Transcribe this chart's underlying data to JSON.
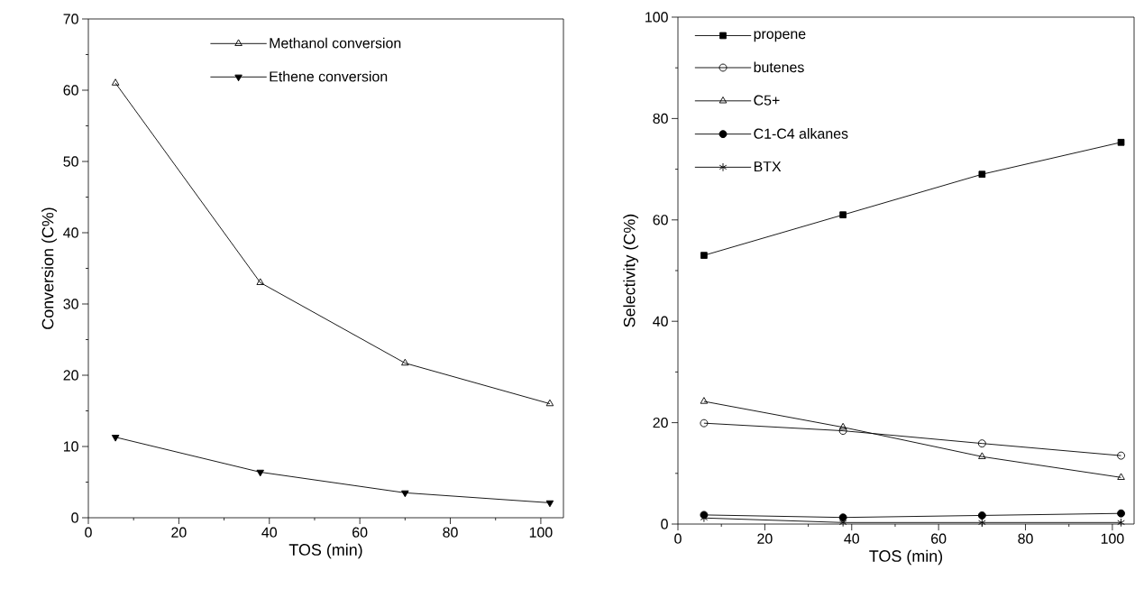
{
  "chart_data": [
    {
      "type": "line",
      "xlabel": "TOS (min)",
      "ylabel": "Conversion (C%)",
      "x": [
        6,
        38,
        70,
        102
      ],
      "xlim": [
        0,
        105
      ],
      "ylim": [
        0,
        70
      ],
      "xticks": [
        0,
        20,
        40,
        60,
        80,
        100
      ],
      "yticks": [
        0,
        10,
        20,
        30,
        40,
        50,
        60,
        70
      ],
      "grid": false,
      "legend": "top",
      "line_style": "solid",
      "series": [
        {
          "name": "Methanol conversion",
          "color": "#000000",
          "marker": "triangle open",
          "values": [
            61,
            33,
            21.7,
            16
          ]
        },
        {
          "name": "Ethene conversion",
          "color": "#000000",
          "marker": "triangle down",
          "values": [
            11.3,
            6.4,
            3.5,
            2.1
          ]
        }
      ]
    },
    {
      "type": "line",
      "xlabel": "TOS (min)",
      "ylabel": "Selectivity (C%)",
      "x": [
        6,
        38,
        70,
        102
      ],
      "xlim": [
        0,
        105
      ],
      "ylim": [
        0,
        100
      ],
      "xticks": [
        0,
        20,
        40,
        60,
        80,
        100
      ],
      "yticks": [
        0,
        20,
        40,
        60,
        80,
        100
      ],
      "grid": false,
      "legend": "top left",
      "line_style": "solid",
      "series": [
        {
          "name": "propene",
          "color": "#000000",
          "marker": "square",
          "values": [
            53,
            61,
            69,
            75.3
          ]
        },
        {
          "name": "butenes",
          "color": "#000000",
          "marker": "circle open",
          "values": [
            19.9,
            18.4,
            15.9,
            13.5
          ]
        },
        {
          "name": "C5+",
          "color": "#000000",
          "marker": "triangle open",
          "values": [
            24.2,
            19.1,
            13.3,
            9.2
          ]
        },
        {
          "name": "C1-C4 alkanes",
          "color": "#000000",
          "marker": "circle",
          "values": [
            1.8,
            1.3,
            1.7,
            2.1
          ]
        },
        {
          "name": "BTX",
          "color": "#000000",
          "marker": "cross",
          "values": [
            1.2,
            0.3,
            0.3,
            0.3
          ]
        }
      ]
    }
  ]
}
